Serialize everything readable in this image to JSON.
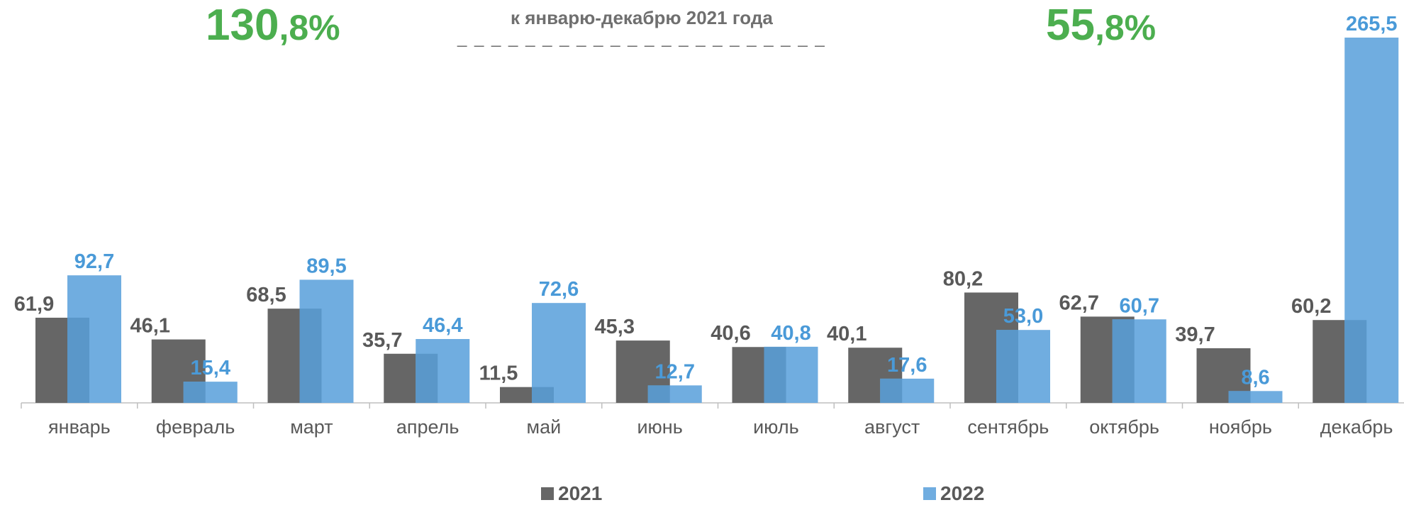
{
  "headline": {
    "left_int": "130",
    "left_dec": ",8%",
    "subtitle": "к январю-декабрю 2021 года",
    "subtitle_dash": "_ _ _ _ _ _ _ _ _ _ _ _ _ _ _ _ _ _ _ _ _ _",
    "right_int": "55",
    "right_dec": ",8%"
  },
  "colors": {
    "s2021": "#666666",
    "s2022": "#70ade0",
    "overlap": "#5a97c9",
    "label2021": "#595959",
    "label2022": "#4a9ad8",
    "green": "#4cae4f"
  },
  "chart_data": {
    "type": "bar",
    "categories": [
      "январь",
      "февраль",
      "март",
      "апрель",
      "май",
      "июнь",
      "июль",
      "август",
      "сентябрь",
      "октябрь",
      "ноябрь",
      "декабрь"
    ],
    "series": [
      {
        "name": "2021",
        "values": [
          61.9,
          46.1,
          68.5,
          35.7,
          11.5,
          45.3,
          40.6,
          40.1,
          80.2,
          62.7,
          39.7,
          60.2
        ],
        "labels": [
          "61,9",
          "46,1",
          "68,5",
          "35,7",
          "11,5",
          "45,3",
          "40,6",
          "40,1",
          "80,2",
          "62,7",
          "39,7",
          "60,2"
        ]
      },
      {
        "name": "2022",
        "values": [
          92.7,
          15.4,
          89.5,
          46.4,
          72.6,
          12.7,
          40.8,
          17.6,
          53.0,
          60.7,
          8.6,
          265.5
        ],
        "labels": [
          "92,7",
          "15,4",
          "89,5",
          "46,4",
          "72,6",
          "12,7",
          "40,8",
          "17,6",
          "53,0",
          "60,7",
          "8,6",
          "265,5"
        ]
      }
    ],
    "ylim": [
      0,
      265.5
    ],
    "grid": false,
    "legend": "bottom"
  },
  "legend": {
    "s2021": "2021",
    "s2022": "2022"
  }
}
